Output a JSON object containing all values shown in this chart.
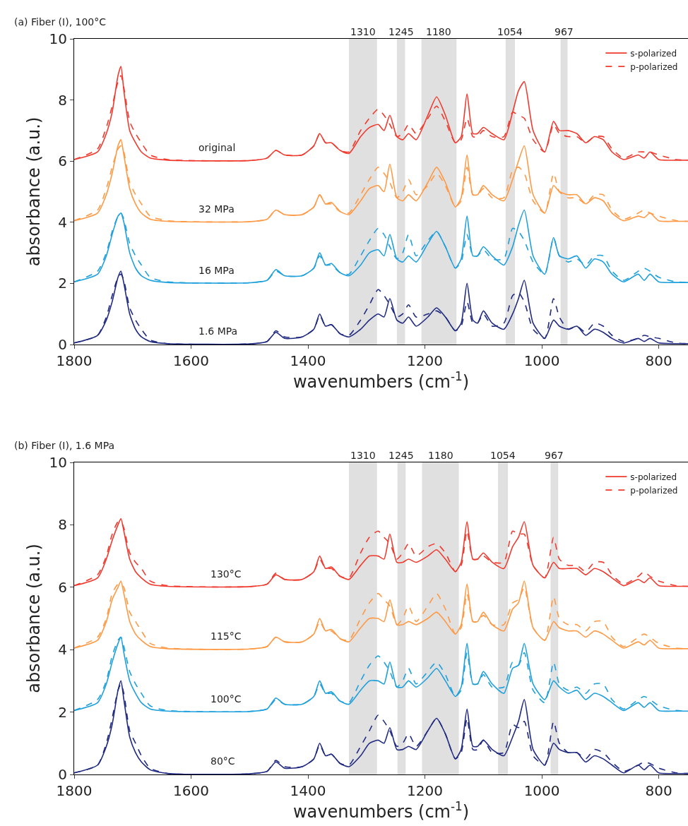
{
  "chart_data": [
    {
      "type": "line",
      "title": "(a) Fiber (I), 100°C",
      "xlabel": "wavenumbers (cm$^{-1}$)",
      "ylabel": "absorbance (a.u.)",
      "legend": "top right",
      "x": [
        1800,
        1760,
        1745,
        1735,
        1725,
        1720,
        1715,
        1705,
        1695,
        1685,
        1670,
        1640,
        1500,
        1470,
        1455,
        1440,
        1410,
        1390,
        1380,
        1370,
        1360,
        1345,
        1330,
        1310,
        1295,
        1280,
        1270,
        1260,
        1248,
        1238,
        1228,
        1215,
        1195,
        1180,
        1165,
        1148,
        1138,
        1128,
        1118,
        1110,
        1100,
        1085,
        1065,
        1050,
        1040,
        1030,
        1015,
        995,
        980,
        970,
        955,
        940,
        925,
        910,
        895,
        880,
        860,
        835,
        825,
        815,
        800,
        770,
        750
      ],
      "xlim": [
        1800,
        750
      ],
      "xticks": [
        1800,
        1600,
        1400,
        1200,
        1000,
        800
      ],
      "ylim": [
        0,
        10
      ],
      "yticks": [
        0,
        2,
        4,
        6,
        8,
        10
      ],
      "series": [
        {
          "name": "s-polarized",
          "color": "#f03a2e",
          "line_style": "solid",
          "values": [
            6.05,
            6.3,
            6.9,
            7.6,
            8.8,
            9.1,
            8.3,
            7.0,
            6.6,
            6.3,
            6.1,
            6.03,
            6.02,
            6.1,
            6.35,
            6.2,
            6.2,
            6.5,
            6.9,
            6.6,
            6.6,
            6.35,
            6.25,
            6.8,
            7.1,
            7.2,
            7.0,
            7.5,
            6.8,
            6.7,
            6.9,
            6.7,
            7.5,
            8.1,
            7.5,
            6.6,
            6.8,
            8.2,
            6.9,
            6.9,
            7.1,
            6.9,
            6.7,
            7.6,
            8.3,
            8.6,
            7.0,
            6.3,
            7.3,
            7.0,
            7.0,
            6.9,
            6.6,
            6.8,
            6.7,
            6.3,
            6.05,
            6.2,
            6.1,
            6.3,
            6.05,
            6.03,
            6.03
          ]
        },
        {
          "name": "p-polarized",
          "color": "#f03a2e",
          "line_style": "dashed",
          "values": [
            6.05,
            6.4,
            7.1,
            7.8,
            8.6,
            8.8,
            8.4,
            7.3,
            6.9,
            6.6,
            6.2,
            6.05,
            6.02,
            6.1,
            6.35,
            6.2,
            6.2,
            6.5,
            6.9,
            6.6,
            6.6,
            6.35,
            6.3,
            7.0,
            7.4,
            7.7,
            7.5,
            7.2,
            6.8,
            6.9,
            7.2,
            6.9,
            7.4,
            7.8,
            7.3,
            6.6,
            6.7,
            7.4,
            6.8,
            6.8,
            7.0,
            6.8,
            6.8,
            7.6,
            7.5,
            7.4,
            6.7,
            6.3,
            7.2,
            6.9,
            6.8,
            6.8,
            6.6,
            6.8,
            6.8,
            6.4,
            6.1,
            6.3,
            6.3,
            6.3,
            6.2,
            6.05,
            6.03
          ]
        },
        {
          "color": "#ff9944",
          "line_style": "solid",
          "values": [
            4.05,
            4.3,
            4.9,
            5.6,
            6.5,
            6.7,
            6.2,
            5.1,
            4.6,
            4.3,
            4.1,
            4.03,
            4.02,
            4.1,
            4.4,
            4.25,
            4.25,
            4.5,
            4.9,
            4.6,
            4.65,
            4.35,
            4.25,
            4.7,
            5.1,
            5.2,
            5.0,
            5.9,
            4.8,
            4.7,
            4.9,
            4.7,
            5.3,
            5.8,
            5.3,
            4.5,
            4.8,
            6.2,
            4.9,
            4.9,
            5.2,
            4.9,
            4.7,
            5.4,
            6.0,
            6.5,
            4.9,
            4.3,
            5.2,
            5.0,
            4.9,
            4.9,
            4.6,
            4.8,
            4.7,
            4.3,
            4.05,
            4.2,
            4.15,
            4.3,
            4.05,
            4.03,
            4.03
          ]
        },
        {
          "color": "#ff9944",
          "line_style": "dashed",
          "values": [
            4.05,
            4.4,
            5.1,
            5.8,
            6.4,
            6.5,
            6.3,
            5.3,
            4.9,
            4.6,
            4.2,
            4.05,
            4.02,
            4.1,
            4.4,
            4.25,
            4.25,
            4.5,
            4.9,
            4.6,
            4.6,
            4.35,
            4.3,
            4.9,
            5.4,
            5.8,
            5.6,
            5.3,
            4.8,
            5.0,
            5.4,
            4.9,
            5.2,
            5.6,
            5.2,
            4.5,
            4.7,
            5.8,
            4.9,
            4.9,
            5.1,
            4.8,
            4.8,
            5.7,
            5.8,
            5.6,
            4.7,
            4.3,
            5.6,
            5.0,
            4.8,
            4.8,
            4.6,
            4.9,
            4.9,
            4.4,
            4.1,
            4.3,
            4.4,
            4.3,
            4.2,
            4.05,
            4.03
          ]
        },
        {
          "color": "#1ea0dc",
          "line_style": "solid",
          "values": [
            2.05,
            2.3,
            2.9,
            3.6,
            4.2,
            4.3,
            4.0,
            3.0,
            2.5,
            2.25,
            2.1,
            2.03,
            2.02,
            2.1,
            2.45,
            2.25,
            2.25,
            2.5,
            3.0,
            2.6,
            2.65,
            2.35,
            2.25,
            2.6,
            3.0,
            3.1,
            2.9,
            3.6,
            2.8,
            2.7,
            2.9,
            2.7,
            3.3,
            3.7,
            3.2,
            2.5,
            2.8,
            4.2,
            2.9,
            2.9,
            3.2,
            2.9,
            2.6,
            3.2,
            3.9,
            4.4,
            2.9,
            2.3,
            3.5,
            2.9,
            2.8,
            2.9,
            2.5,
            2.8,
            2.7,
            2.3,
            2.05,
            2.3,
            2.1,
            2.3,
            2.05,
            2.03,
            2.03
          ]
        },
        {
          "color": "#1ea0dc",
          "line_style": "dashed",
          "values": [
            2.05,
            2.4,
            3.0,
            3.7,
            4.2,
            4.3,
            4.1,
            3.3,
            2.9,
            2.6,
            2.2,
            2.05,
            2.02,
            2.1,
            2.4,
            2.25,
            2.25,
            2.5,
            2.9,
            2.6,
            2.6,
            2.35,
            2.3,
            2.9,
            3.4,
            3.8,
            3.6,
            3.2,
            2.8,
            3.0,
            3.6,
            2.9,
            3.4,
            3.7,
            3.2,
            2.5,
            2.7,
            3.6,
            2.9,
            2.9,
            3.1,
            2.8,
            2.8,
            3.8,
            3.7,
            3.4,
            2.7,
            2.3,
            3.5,
            2.9,
            2.7,
            2.8,
            2.6,
            2.9,
            2.9,
            2.4,
            2.1,
            2.4,
            2.5,
            2.4,
            2.2,
            2.05,
            2.03
          ]
        },
        {
          "color": "#1f2a80",
          "line_style": "solid",
          "values": [
            0.05,
            0.3,
            0.8,
            1.4,
            2.2,
            2.4,
            2.0,
            1.0,
            0.5,
            0.25,
            0.1,
            0.03,
            0.02,
            0.1,
            0.4,
            0.2,
            0.25,
            0.5,
            1.0,
            0.6,
            0.65,
            0.35,
            0.25,
            0.5,
            0.8,
            1.0,
            0.9,
            1.5,
            0.8,
            0.7,
            0.9,
            0.6,
            0.9,
            1.2,
            0.9,
            0.45,
            0.7,
            2.0,
            0.8,
            0.7,
            1.1,
            0.7,
            0.5,
            1.0,
            1.5,
            2.1,
            0.7,
            0.2,
            0.8,
            0.6,
            0.5,
            0.6,
            0.3,
            0.5,
            0.4,
            0.2,
            0.05,
            0.2,
            0.1,
            0.2,
            0.05,
            0.03,
            0.03
          ]
        },
        {
          "color": "#1f2a80",
          "line_style": "dashed",
          "values": [
            0.05,
            0.3,
            0.9,
            1.6,
            2.2,
            2.3,
            2.1,
            1.2,
            0.8,
            0.5,
            0.15,
            0.03,
            0.02,
            0.1,
            0.45,
            0.25,
            0.25,
            0.5,
            0.95,
            0.6,
            0.65,
            0.35,
            0.3,
            0.8,
            1.3,
            1.8,
            1.6,
            1.3,
            0.9,
            1.0,
            1.3,
            0.9,
            1.0,
            1.1,
            0.9,
            0.45,
            0.6,
            1.4,
            0.7,
            0.7,
            1.0,
            0.6,
            0.7,
            1.6,
            1.7,
            1.4,
            0.5,
            0.2,
            1.5,
            0.9,
            0.5,
            0.6,
            0.4,
            0.7,
            0.6,
            0.3,
            0.1,
            0.2,
            0.3,
            0.25,
            0.2,
            0.05,
            0.03
          ]
        }
      ],
      "bands": [
        {
          "axis": "x",
          "from": 1330,
          "to": 1282,
          "label": "1310",
          "color": "#e0e0e0"
        },
        {
          "axis": "x",
          "from": 1248,
          "to": 1234,
          "label": "1245",
          "color": "#e0e0e0"
        },
        {
          "axis": "x",
          "from": 1206,
          "to": 1146,
          "label": "1180",
          "color": "#e0e0e0"
        },
        {
          "axis": "x",
          "from": 1062,
          "to": 1046,
          "label": "1054",
          "color": "#e0e0e0"
        },
        {
          "axis": "x",
          "from": 968,
          "to": 956,
          "label": "967",
          "color": "#e0e0e0"
        }
      ],
      "annotations": [
        "original",
        "32 MPa",
        "16 MPa",
        "1.6 MPa"
      ]
    },
    {
      "type": "line",
      "title": "(b) Fiber (I), 1.6 MPa",
      "xlabel": "wavenumbers (cm$^{-1}$)",
      "ylabel": "absorbance (a.u.)",
      "legend": "top right",
      "x": [
        1800,
        1760,
        1745,
        1735,
        1725,
        1720,
        1715,
        1705,
        1695,
        1685,
        1670,
        1640,
        1500,
        1470,
        1455,
        1440,
        1410,
        1390,
        1380,
        1370,
        1360,
        1345,
        1330,
        1310,
        1295,
        1280,
        1270,
        1260,
        1248,
        1238,
        1228,
        1215,
        1195,
        1180,
        1165,
        1148,
        1138,
        1128,
        1118,
        1110,
        1100,
        1085,
        1065,
        1050,
        1040,
        1030,
        1015,
        995,
        980,
        970,
        955,
        940,
        925,
        910,
        895,
        880,
        860,
        835,
        825,
        815,
        800,
        770,
        750
      ],
      "xlim": [
        1800,
        750
      ],
      "xticks": [
        1800,
        1600,
        1400,
        1200,
        1000,
        800
      ],
      "ylim": [
        0,
        10
      ],
      "yticks": [
        0,
        2,
        4,
        6,
        8,
        10
      ],
      "series": [
        {
          "name": "s-polarized",
          "color": "#f03a2e",
          "line_style": "solid",
          "values": [
            6.05,
            6.3,
            6.9,
            7.5,
            8.0,
            8.2,
            7.8,
            6.9,
            6.5,
            6.3,
            6.1,
            6.03,
            6.02,
            6.1,
            6.4,
            6.25,
            6.25,
            6.5,
            7.0,
            6.6,
            6.65,
            6.35,
            6.25,
            6.7,
            7.0,
            7.0,
            6.9,
            7.7,
            6.8,
            6.8,
            6.9,
            6.8,
            7.0,
            7.2,
            6.9,
            6.5,
            6.8,
            8.1,
            6.9,
            6.9,
            7.1,
            6.8,
            6.6,
            7.3,
            7.6,
            8.1,
            6.7,
            6.3,
            6.8,
            6.6,
            6.6,
            6.6,
            6.4,
            6.6,
            6.5,
            6.3,
            6.05,
            6.25,
            6.15,
            6.3,
            6.05,
            6.03,
            6.03
          ]
        },
        {
          "name": "p-polarized",
          "color": "#f03a2e",
          "line_style": "dashed",
          "values": [
            6.05,
            6.4,
            7.0,
            7.7,
            8.1,
            8.1,
            7.9,
            7.1,
            6.8,
            6.6,
            6.2,
            6.05,
            6.02,
            6.1,
            6.45,
            6.25,
            6.25,
            6.5,
            6.9,
            6.6,
            6.6,
            6.35,
            6.3,
            7.1,
            7.6,
            7.8,
            7.6,
            7.4,
            6.9,
            7.1,
            7.4,
            7.0,
            7.3,
            7.4,
            7.1,
            6.5,
            6.7,
            7.8,
            6.9,
            6.9,
            7.0,
            6.8,
            6.8,
            7.8,
            7.7,
            7.7,
            6.7,
            6.3,
            7.6,
            6.9,
            6.7,
            6.7,
            6.5,
            6.8,
            6.8,
            6.4,
            6.1,
            6.35,
            6.5,
            6.35,
            6.2,
            6.05,
            6.03
          ]
        },
        {
          "color": "#ff9944",
          "line_style": "solid",
          "values": [
            4.05,
            4.3,
            4.9,
            5.6,
            6.0,
            6.2,
            5.8,
            4.9,
            4.5,
            4.3,
            4.1,
            4.03,
            4.02,
            4.1,
            4.4,
            4.25,
            4.25,
            4.5,
            5.0,
            4.6,
            4.65,
            4.35,
            4.25,
            4.7,
            5.0,
            5.0,
            4.9,
            5.6,
            4.8,
            4.8,
            4.9,
            4.8,
            5.0,
            5.2,
            4.9,
            4.5,
            4.8,
            6.1,
            4.9,
            4.9,
            5.2,
            4.8,
            4.6,
            5.3,
            5.5,
            6.2,
            4.7,
            4.3,
            4.9,
            4.7,
            4.6,
            4.6,
            4.4,
            4.6,
            4.5,
            4.3,
            4.05,
            4.25,
            4.15,
            4.3,
            4.05,
            4.03,
            4.03
          ]
        },
        {
          "color": "#ff9944",
          "line_style": "dashed",
          "values": [
            4.05,
            4.4,
            5.0,
            5.8,
            6.1,
            6.1,
            6.0,
            5.2,
            4.9,
            4.6,
            4.2,
            4.05,
            4.02,
            4.1,
            4.4,
            4.25,
            4.25,
            4.5,
            4.9,
            4.6,
            4.6,
            4.35,
            4.3,
            5.0,
            5.5,
            5.8,
            5.6,
            5.4,
            4.8,
            5.0,
            5.4,
            4.9,
            5.4,
            5.8,
            5.3,
            4.5,
            4.7,
            5.8,
            4.9,
            4.9,
            5.1,
            4.8,
            4.8,
            5.5,
            5.6,
            6.0,
            4.7,
            4.3,
            5.7,
            5.0,
            4.8,
            4.8,
            4.6,
            4.9,
            4.9,
            4.4,
            4.1,
            4.4,
            4.5,
            4.4,
            4.2,
            4.05,
            4.03
          ]
        },
        {
          "color": "#1ea0dc",
          "line_style": "solid",
          "values": [
            2.05,
            2.3,
            2.9,
            3.6,
            4.2,
            4.4,
            3.9,
            3.0,
            2.6,
            2.3,
            2.1,
            2.03,
            2.02,
            2.1,
            2.45,
            2.25,
            2.25,
            2.5,
            3.0,
            2.6,
            2.65,
            2.35,
            2.25,
            2.7,
            3.0,
            3.0,
            2.9,
            3.6,
            2.8,
            2.8,
            3.0,
            2.8,
            3.1,
            3.4,
            3.0,
            2.5,
            2.8,
            4.2,
            2.9,
            2.9,
            3.3,
            2.9,
            2.6,
            3.4,
            3.5,
            4.2,
            2.9,
            2.4,
            3.0,
            2.8,
            2.6,
            2.7,
            2.4,
            2.6,
            2.5,
            2.3,
            2.05,
            2.3,
            2.15,
            2.3,
            2.05,
            2.03,
            2.03
          ]
        },
        {
          "color": "#1ea0dc",
          "line_style": "dashed",
          "values": [
            2.05,
            2.4,
            3.0,
            3.8,
            4.3,
            4.4,
            4.1,
            3.3,
            2.9,
            2.6,
            2.2,
            2.05,
            2.02,
            2.1,
            2.4,
            2.25,
            2.25,
            2.5,
            2.9,
            2.6,
            2.6,
            2.35,
            2.3,
            3.0,
            3.5,
            3.8,
            3.6,
            3.3,
            2.8,
            3.0,
            3.4,
            2.9,
            3.3,
            3.6,
            3.2,
            2.5,
            2.7,
            3.9,
            2.9,
            2.9,
            3.2,
            2.8,
            2.8,
            3.6,
            3.5,
            3.9,
            2.7,
            2.3,
            3.6,
            2.9,
            2.7,
            2.8,
            2.6,
            2.9,
            2.9,
            2.4,
            2.1,
            2.4,
            2.5,
            2.4,
            2.2,
            2.05,
            2.03
          ]
        },
        {
          "color": "#1f2a80",
          "line_style": "solid",
          "values": [
            0.05,
            0.3,
            0.9,
            1.6,
            2.7,
            3.0,
            2.4,
            1.2,
            0.7,
            0.4,
            0.15,
            0.03,
            0.02,
            0.1,
            0.4,
            0.2,
            0.25,
            0.5,
            1.0,
            0.6,
            0.65,
            0.35,
            0.25,
            0.6,
            1.0,
            1.1,
            1.0,
            1.5,
            0.8,
            0.8,
            0.9,
            0.8,
            1.4,
            1.8,
            1.3,
            0.5,
            0.8,
            2.1,
            0.9,
            0.9,
            1.1,
            0.8,
            0.6,
            1.2,
            1.7,
            2.4,
            0.8,
            0.3,
            1.0,
            0.8,
            0.7,
            0.7,
            0.4,
            0.6,
            0.5,
            0.3,
            0.05,
            0.3,
            0.15,
            0.3,
            0.05,
            0.03,
            0.03
          ]
        },
        {
          "color": "#1f2a80",
          "line_style": "dashed",
          "values": [
            0.05,
            0.3,
            1.0,
            1.8,
            2.7,
            2.9,
            2.6,
            1.4,
            1.0,
            0.6,
            0.2,
            0.03,
            0.02,
            0.1,
            0.45,
            0.25,
            0.25,
            0.5,
            0.95,
            0.6,
            0.65,
            0.35,
            0.3,
            0.9,
            1.4,
            1.9,
            1.7,
            1.4,
            0.9,
            1.0,
            1.3,
            0.9,
            1.4,
            1.8,
            1.3,
            0.5,
            0.7,
            1.8,
            0.8,
            0.8,
            1.1,
            0.7,
            0.7,
            1.6,
            1.5,
            1.7,
            0.6,
            0.3,
            1.7,
            1.0,
            0.7,
            0.7,
            0.5,
            0.8,
            0.7,
            0.4,
            0.1,
            0.3,
            0.4,
            0.35,
            0.2,
            0.05,
            0.03
          ]
        }
      ],
      "bands": [
        {
          "axis": "x",
          "from": 1330,
          "to": 1282,
          "label": "1310",
          "color": "#e0e0e0"
        },
        {
          "axis": "x",
          "from": 1247,
          "to": 1233,
          "label": "1245",
          "color": "#e0e0e0"
        },
        {
          "axis": "x",
          "from": 1205,
          "to": 1142,
          "label": "1180",
          "color": "#e0e0e0"
        },
        {
          "axis": "x",
          "from": 1075,
          "to": 1058,
          "label": "1054",
          "color": "#e0e0e0"
        },
        {
          "axis": "x",
          "from": 985,
          "to": 972,
          "label": "967",
          "color": "#e0e0e0"
        }
      ],
      "annotations": [
        "130°C",
        "115°C",
        "100°C",
        "80°C"
      ]
    }
  ]
}
